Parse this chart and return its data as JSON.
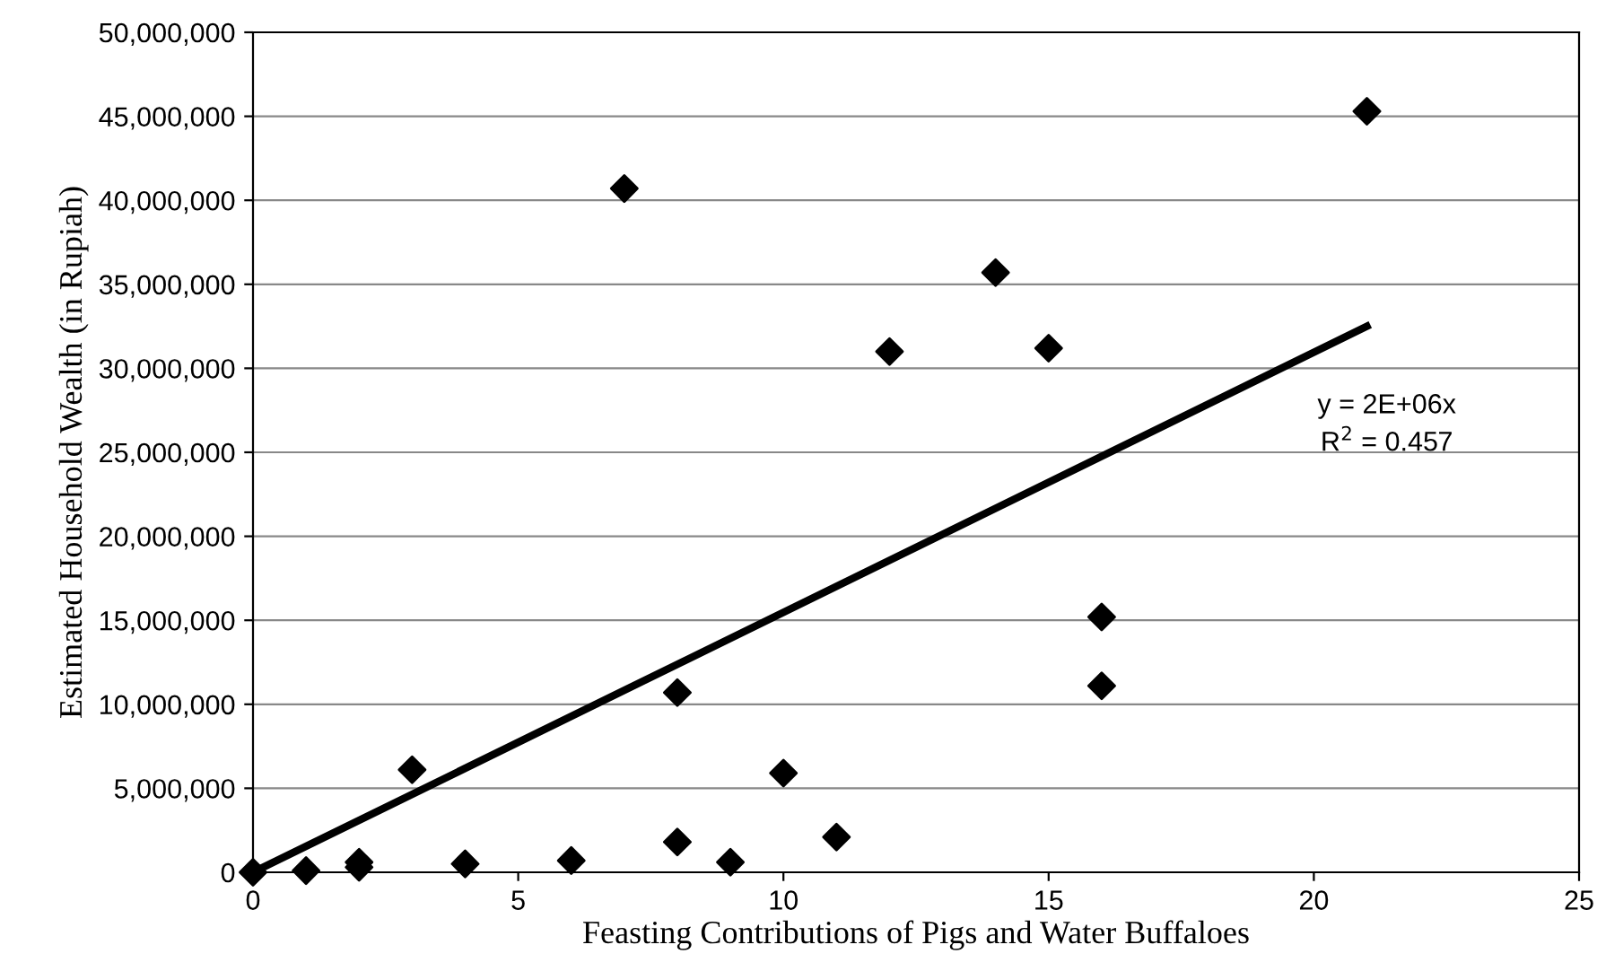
{
  "chart_data": {
    "type": "scatter",
    "xlabel": "Feasting Contributions of Pigs and Water Buffaloes",
    "ylabel": "Estimated Household Wealth (in Rupiah)",
    "series": [
      {
        "color": "#000000",
        "marker": "diamond",
        "x": [
          0,
          1,
          2,
          2,
          3,
          4,
          6,
          7,
          8,
          8,
          9,
          10,
          11,
          12,
          14,
          15,
          16,
          16,
          21
        ],
        "values": [
          0,
          100000,
          600000,
          300000,
          6100000,
          500000,
          700000,
          40700000,
          10700000,
          1800000,
          600000,
          5900000,
          2100000,
          31000000,
          35700000,
          31200000,
          15200000,
          11100000,
          45300000
        ]
      },
      {
        "type": "line",
        "color": "#000000",
        "marker": "none",
        "x": [
          0,
          21
        ],
        "values": [
          0,
          32500000
        ]
      }
    ],
    "annotations": [
      "y = 2E+06x",
      "R$^{2}$ = 0.457"
    ],
    "xlim": [
      0,
      25
    ],
    "xticks": [
      0,
      5,
      10,
      15,
      20,
      25
    ],
    "ylim": [
      0,
      50000000
    ],
    "yticks": [
      {
        "value": 0,
        "label": "0"
      },
      {
        "value": 5000000,
        "label": "5,000,000"
      },
      {
        "value": 10000000,
        "label": "10,000,000"
      },
      {
        "value": 15000000,
        "label": "15,000,000"
      },
      {
        "value": 20000000,
        "label": "20,000,000"
      },
      {
        "value": 25000000,
        "label": "25,000,000"
      },
      {
        "value": 30000000,
        "label": "30,000,000"
      },
      {
        "value": 35000000,
        "label": "35,000,000"
      },
      {
        "value": 40000000,
        "label": "40,000,000"
      },
      {
        "value": 45000000,
        "label": "45,000,000"
      },
      {
        "value": 50000000,
        "label": "50,000,000"
      }
    ],
    "grid": "y"
  }
}
